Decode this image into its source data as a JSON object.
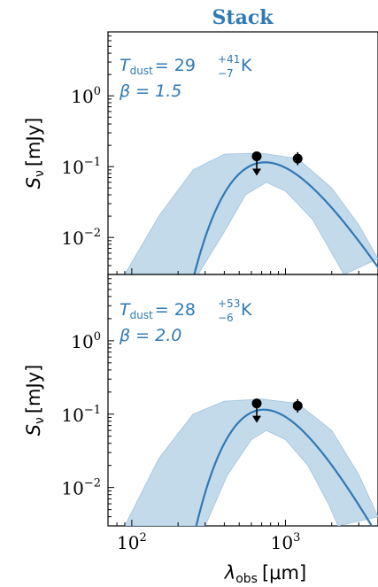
{
  "chart_data": {
    "type": "line",
    "title": "Stack",
    "xlabel": "λ",
    "xlabel_sub": "obs",
    "xlabel_unit": "[μm]",
    "x_scale": "log",
    "xlim": [
      70,
      4000
    ],
    "x_ticks": [
      {
        "value": 100,
        "base": "10",
        "exp": "2"
      },
      {
        "value": 1000,
        "base": "10",
        "exp": "3"
      }
    ],
    "colors": {
      "curve": "#2f79b5",
      "band": "#b9d3e8",
      "band_edge": "#9fc2df",
      "points": "#000000",
      "title": "#2f79b5",
      "annotation": "#2f79b5"
    },
    "panels": [
      {
        "ylabel": "S",
        "ylabel_sub": "ν",
        "ylabel_unit": "[mJy]",
        "y_scale": "log",
        "ylim": [
          0.003,
          8
        ],
        "y_ticks": [
          {
            "value": 1,
            "base": "10",
            "exp": "0"
          },
          {
            "value": 0.1,
            "base": "10",
            "exp": "−1"
          },
          {
            "value": 0.01,
            "base": "10",
            "exp": "−2"
          }
        ],
        "annotation_line1": "T",
        "annotation_line1_sub": "dust",
        "annotation_line1_eq": "= 29",
        "annotation_line1_sup": "+41",
        "annotation_line1_low": "−7",
        "annotation_line1_unit": "K",
        "annotation_line2": "β = 1.5",
        "model_curve": {
          "peak_x": 740,
          "peak_y": 0.115,
          "beta": 1.5
        },
        "band_upper": [
          [
            90,
            0.003
          ],
          [
            150,
            0.02
          ],
          [
            250,
            0.09
          ],
          [
            400,
            0.15
          ],
          [
            700,
            0.155
          ],
          [
            1200,
            0.13
          ],
          [
            2000,
            0.05
          ],
          [
            3000,
            0.015
          ],
          [
            4000,
            0.005
          ]
        ],
        "band_lower": [
          [
            270,
            0.003
          ],
          [
            400,
            0.012
          ],
          [
            550,
            0.04
          ],
          [
            750,
            0.06
          ],
          [
            1000,
            0.045
          ],
          [
            1500,
            0.018
          ],
          [
            2100,
            0.005
          ],
          [
            2400,
            0.003
          ]
        ],
        "points": [
          {
            "x": 650,
            "y": 0.14,
            "upper_limit": true
          },
          {
            "x": 1200,
            "y": 0.13,
            "upper_limit": false,
            "err_low": 0.105,
            "err_high": 0.16
          }
        ]
      },
      {
        "ylabel": "S",
        "ylabel_sub": "ν",
        "ylabel_unit": "[mJy]",
        "y_scale": "log",
        "ylim": [
          0.003,
          8
        ],
        "y_ticks": [
          {
            "value": 1,
            "base": "10",
            "exp": "0"
          },
          {
            "value": 0.1,
            "base": "10",
            "exp": "−1"
          },
          {
            "value": 0.01,
            "base": "10",
            "exp": "−2"
          }
        ],
        "annotation_line1": "T",
        "annotation_line1_sub": "dust",
        "annotation_line1_eq": "= 28",
        "annotation_line1_sup": "+53",
        "annotation_line1_low": "−6",
        "annotation_line1_unit": "K",
        "annotation_line2": "β = 2.0",
        "model_curve": {
          "peak_x": 720,
          "peak_y": 0.115,
          "beta": 2.0
        },
        "band_upper": [
          [
            90,
            0.003
          ],
          [
            150,
            0.025
          ],
          [
            250,
            0.1
          ],
          [
            400,
            0.15
          ],
          [
            700,
            0.16
          ],
          [
            1200,
            0.14
          ],
          [
            2000,
            0.06
          ],
          [
            3000,
            0.015
          ],
          [
            4000,
            0.004
          ]
        ],
        "band_lower": [
          [
            300,
            0.003
          ],
          [
            420,
            0.015
          ],
          [
            600,
            0.045
          ],
          [
            750,
            0.06
          ],
          [
            1000,
            0.045
          ],
          [
            1400,
            0.02
          ],
          [
            1900,
            0.006
          ],
          [
            2200,
            0.003
          ]
        ],
        "points": [
          {
            "x": 650,
            "y": 0.14,
            "upper_limit": true
          },
          {
            "x": 1200,
            "y": 0.13,
            "upper_limit": false,
            "err_low": 0.105,
            "err_high": 0.16
          }
        ]
      }
    ]
  }
}
